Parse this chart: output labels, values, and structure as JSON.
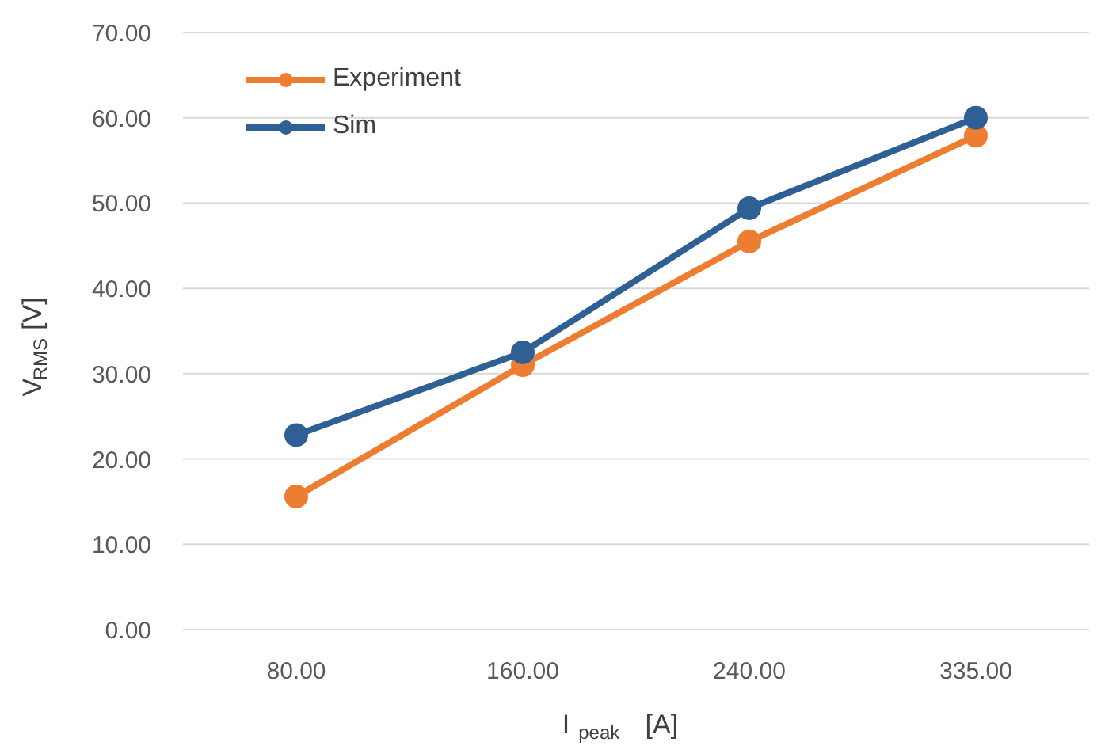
{
  "chart_data": {
    "type": "line",
    "xlabel": "I$_{peak}$ [A]",
    "ylabel": "V$_{RMS}$ [V]",
    "categories": [
      "80.00",
      "160.00",
      "240.00",
      "335.00"
    ],
    "series": [
      {
        "name": "Experiment",
        "color": "#ed7d31",
        "values": [
          15.6,
          31.0,
          45.5,
          57.9
        ]
      },
      {
        "name": "Sim",
        "color": "#2e6096",
        "values": [
          22.8,
          32.5,
          49.4,
          60.0
        ]
      }
    ],
    "ylim": [
      0,
      70
    ],
    "yticks": [
      {
        "value": 0,
        "label": "0.00"
      },
      {
        "value": 10,
        "label": "10.00"
      },
      {
        "value": 20,
        "label": "20.00"
      },
      {
        "value": 30,
        "label": "30.00"
      },
      {
        "value": 40,
        "label": "40.00"
      },
      {
        "value": 50,
        "label": "50.00"
      },
      {
        "value": 60,
        "label": "60.00"
      },
      {
        "value": 70,
        "label": "70.00"
      }
    ],
    "grid": "y",
    "legend": "top left",
    "marker": "circle",
    "line_style": "solid"
  }
}
